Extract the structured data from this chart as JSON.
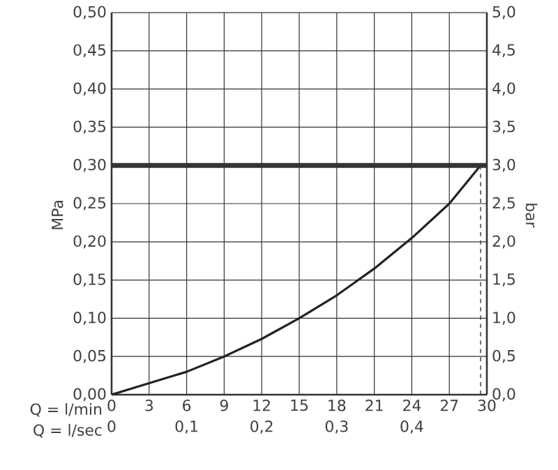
{
  "chart_data": {
    "type": "line",
    "xlabel": "Q = l/min",
    "ylabel": "MPa",
    "y2label": "bar",
    "x2label": "Q = l/sec",
    "series": [
      {
        "color": "#222222",
        "x": [
          0,
          3,
          6,
          9,
          12,
          15,
          18,
          21,
          24,
          27,
          29.5
        ],
        "values": [
          0,
          0.015,
          0.03,
          0.05,
          0.073,
          0.1,
          0.13,
          0.165,
          0.205,
          0.25,
          0.3
        ]
      },
      {
        "color": "#333333",
        "line_style": "dashed",
        "x": [
          29.5,
          29.5
        ],
        "values": [
          0,
          0.3
        ]
      }
    ],
    "ref_lines": [
      {
        "axis": "y",
        "value": 0.3,
        "color": "#333333"
      }
    ],
    "xlim": [
      0,
      30
    ],
    "xticks": [
      0,
      3,
      6,
      9,
      12,
      15,
      18,
      21,
      24,
      27,
      30
    ],
    "ylim": [
      0,
      0.5
    ],
    "yticks": [
      {
        "value": 0,
        "label": "0,00"
      },
      {
        "value": 0.05,
        "label": "0,05"
      },
      {
        "value": 0.1,
        "label": "0,10"
      },
      {
        "value": 0.15,
        "label": "0,15"
      },
      {
        "value": 0.2,
        "label": "0,20"
      },
      {
        "value": 0.25,
        "label": "0,25"
      },
      {
        "value": 0.3,
        "label": "0,30"
      },
      {
        "value": 0.35,
        "label": "0,35"
      },
      {
        "value": 0.4,
        "label": "0,40"
      },
      {
        "value": 0.45,
        "label": "0,45"
      },
      {
        "value": 0.5,
        "label": "0,50"
      }
    ],
    "y2lim": [
      0,
      5
    ],
    "y2ticks": [
      {
        "value": 0,
        "label": "0,0"
      },
      {
        "value": 0.5,
        "label": "0,5"
      },
      {
        "value": 1,
        "label": "1,0"
      },
      {
        "value": 1.5,
        "label": "1,5"
      },
      {
        "value": 2,
        "label": "2,0"
      },
      {
        "value": 2.5,
        "label": "2,5"
      },
      {
        "value": 3,
        "label": "3,0"
      },
      {
        "value": 3.5,
        "label": "3,5"
      },
      {
        "value": 4,
        "label": "4,0"
      },
      {
        "value": 4.5,
        "label": "4,5"
      },
      {
        "value": 5,
        "label": "5,0"
      }
    ],
    "x2lim": [
      0,
      0.5
    ],
    "x2ticks": [
      0,
      {
        "value": 0.1,
        "label": "0,1"
      },
      {
        "value": 0.2,
        "label": "0,2"
      },
      {
        "value": 0.3,
        "label": "0,3"
      },
      {
        "value": 0.4,
        "label": "0,4"
      }
    ],
    "grid": true,
    "marker": "none",
    "line_style": "solid"
  }
}
